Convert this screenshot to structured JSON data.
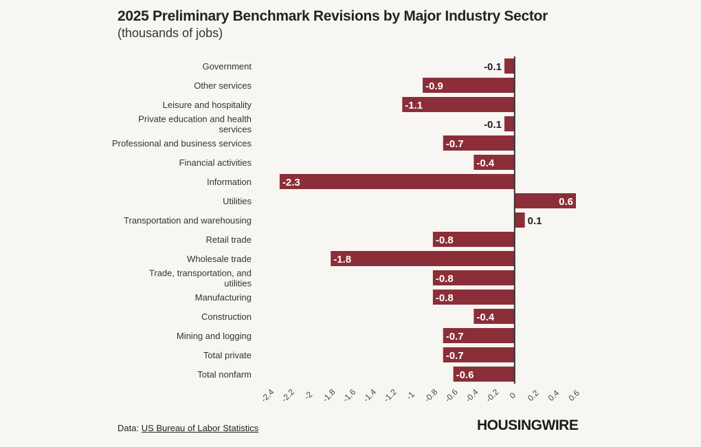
{
  "header": {
    "title": "2025 Preliminary Benchmark Revisions by Major Industry Sector",
    "subtitle": "(thousands of jobs)"
  },
  "footer": {
    "source_prefix": "Data: ",
    "source_link": "US Bureau of Labor Statistics",
    "logo_text": "HOUSINGWIRE"
  },
  "colors": {
    "bar": "#8b2e38",
    "axis": "#333333",
    "label_inside": "#ffffff",
    "label_outside": "#222222"
  },
  "chart_data": {
    "type": "bar",
    "orientation": "horizontal",
    "title": "2025 Preliminary Benchmark Revisions by Major Industry Sector",
    "subtitle": "(thousands of jobs)",
    "categories": [
      "Government",
      "Other services",
      "Leisure and hospitality",
      "Private education and health services",
      "Professional and business services",
      "Financial activities",
      "Information",
      "Utilities",
      "Transportation and warehousing",
      "Retail trade",
      "Wholesale trade",
      "Trade, transportation, and utilities",
      "Manufacturing",
      "Construction",
      "Mining and logging",
      "Total private",
      "Total nonfarm"
    ],
    "values": [
      -0.1,
      -0.9,
      -1.1,
      -0.1,
      -0.7,
      -0.4,
      -2.3,
      0.6,
      0.1,
      -0.8,
      -1.8,
      -0.8,
      -0.8,
      -0.4,
      -0.7,
      -0.7,
      -0.6
    ],
    "xlim": [
      -2.4,
      0.6
    ],
    "xticks": [
      -2.4,
      -2.2,
      -2,
      -1.8,
      -1.6,
      -1.4,
      -1.2,
      -1,
      -0.8,
      -0.6,
      -0.4,
      -0.2,
      0,
      0.2,
      0.4,
      0.6
    ],
    "xlabel": "",
    "ylabel": "",
    "grid": false,
    "legend": "none"
  }
}
